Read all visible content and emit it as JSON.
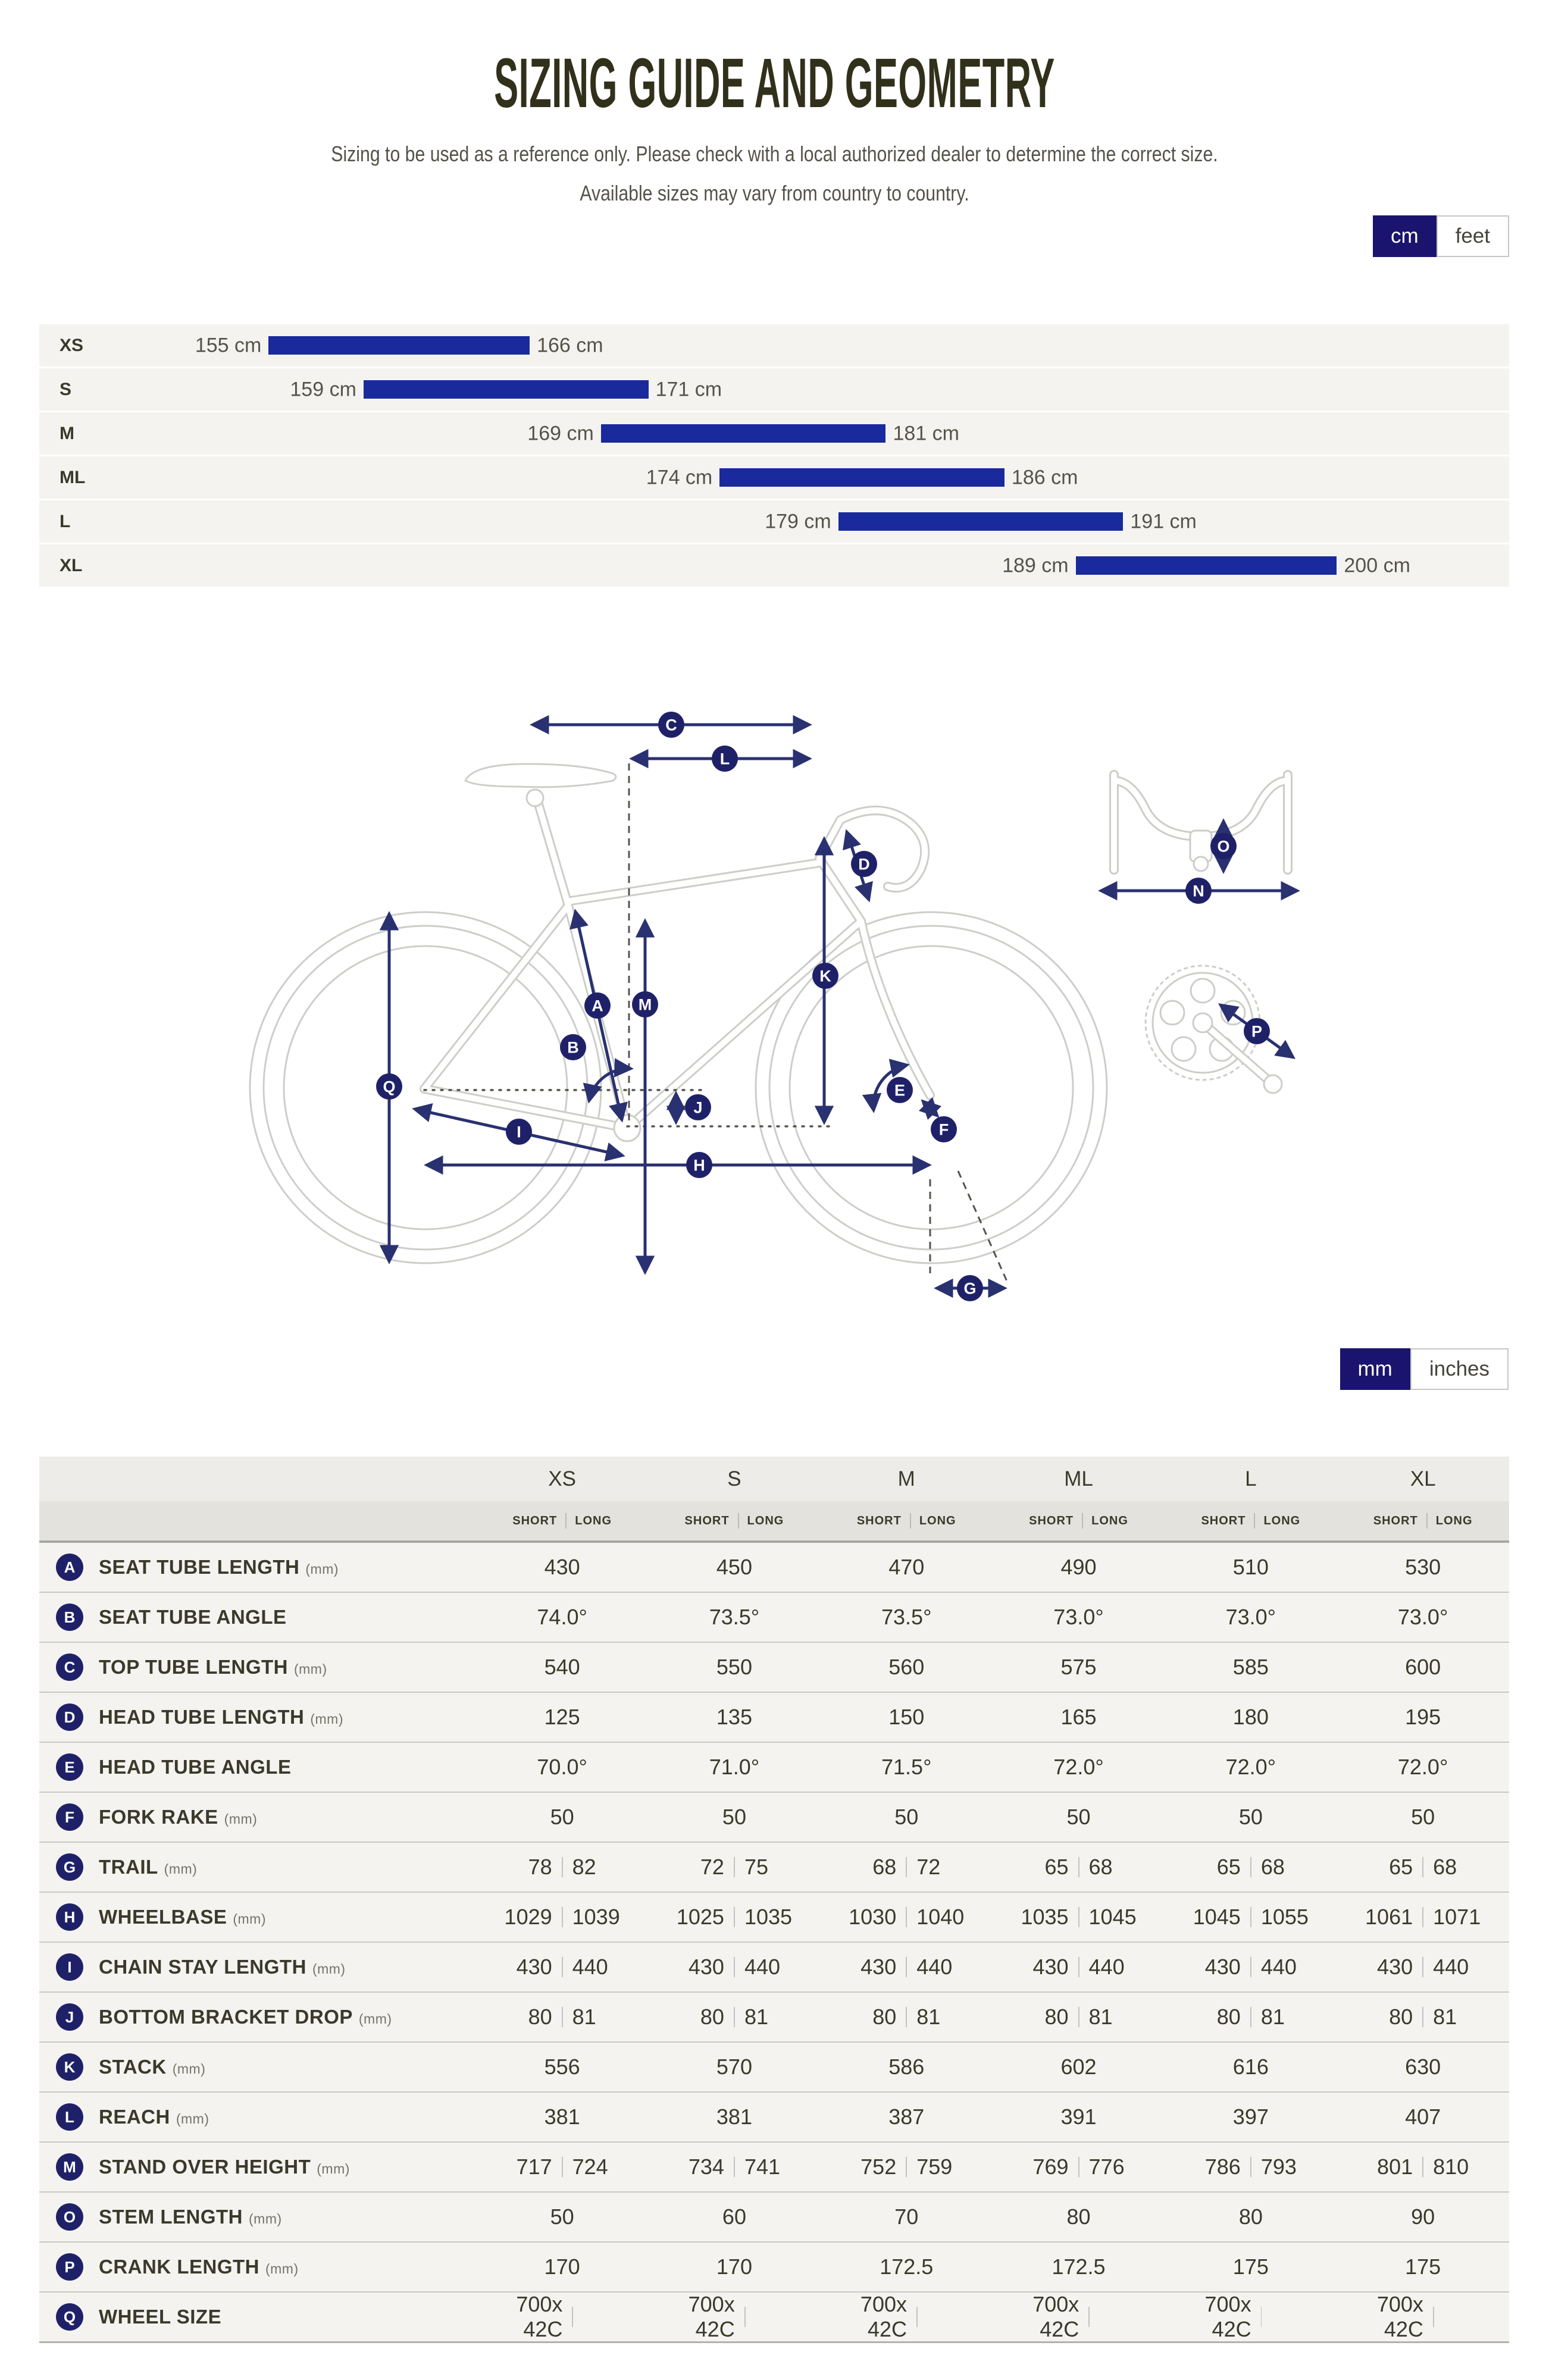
{
  "page": {
    "title": "SIZING GUIDE AND GEOMETRY",
    "subtitle1": "Sizing to be used as a reference only. Please check with a local authorized dealer to determine the correct size.",
    "subtitle2": "Available sizes may vary from country to country."
  },
  "colors": {
    "navy_toggle": "#1b146e",
    "bar_blue": "#1a2a9c",
    "arrow_navy": "#2a3170",
    "badge_navy": "#1f2168"
  },
  "height_unit_toggle": {
    "options": [
      "cm",
      "feet"
    ],
    "selected": "cm"
  },
  "geometry_unit_toggle": {
    "options": [
      "mm",
      "inches"
    ],
    "selected": "mm"
  },
  "size_chart": {
    "unit": "cm",
    "scale_min": 155,
    "scale_max": 200,
    "rows": [
      {
        "size": "XS",
        "from": 155,
        "to": 166,
        "from_label": "155 cm",
        "to_label": "166 cm"
      },
      {
        "size": "S",
        "from": 159,
        "to": 171,
        "from_label": "159 cm",
        "to_label": "171 cm"
      },
      {
        "size": "M",
        "from": 169,
        "to": 181,
        "from_label": "169 cm",
        "to_label": "181 cm"
      },
      {
        "size": "ML",
        "from": 174,
        "to": 186,
        "from_label": "174 cm",
        "to_label": "186 cm"
      },
      {
        "size": "L",
        "from": 179,
        "to": 191,
        "from_label": "179 cm",
        "to_label": "191 cm"
      },
      {
        "size": "XL",
        "from": 189,
        "to": 200,
        "from_label": "189 cm",
        "to_label": "200 cm"
      }
    ]
  },
  "diagram": {
    "labels": [
      "C",
      "L",
      "D",
      "A",
      "M",
      "B",
      "K",
      "Q",
      "E",
      "F",
      "J",
      "I",
      "H",
      "G",
      "N",
      "O",
      "P"
    ]
  },
  "geometry_table": {
    "size_headers": [
      "XS",
      "S",
      "M",
      "ML",
      "L",
      "XL"
    ],
    "sub_headers": {
      "short": "SHORT",
      "long": "LONG"
    },
    "rows": [
      {
        "letter": "A",
        "label": "SEAT TUBE LENGTH",
        "unit": "(mm)",
        "cells": [
          [
            "430"
          ],
          [
            "450"
          ],
          [
            "470"
          ],
          [
            "490"
          ],
          [
            "510"
          ],
          [
            "530"
          ]
        ]
      },
      {
        "letter": "B",
        "label": "SEAT TUBE ANGLE",
        "unit": "",
        "cells": [
          [
            "74.0°"
          ],
          [
            "73.5°"
          ],
          [
            "73.5°"
          ],
          [
            "73.0°"
          ],
          [
            "73.0°"
          ],
          [
            "73.0°"
          ]
        ]
      },
      {
        "letter": "C",
        "label": "TOP TUBE LENGTH",
        "unit": "(mm)",
        "cells": [
          [
            "540"
          ],
          [
            "550"
          ],
          [
            "560"
          ],
          [
            "575"
          ],
          [
            "585"
          ],
          [
            "600"
          ]
        ]
      },
      {
        "letter": "D",
        "label": "HEAD TUBE LENGTH",
        "unit": "(mm)",
        "cells": [
          [
            "125"
          ],
          [
            "135"
          ],
          [
            "150"
          ],
          [
            "165"
          ],
          [
            "180"
          ],
          [
            "195"
          ]
        ]
      },
      {
        "letter": "E",
        "label": "HEAD TUBE ANGLE",
        "unit": "",
        "cells": [
          [
            "70.0°"
          ],
          [
            "71.0°"
          ],
          [
            "71.5°"
          ],
          [
            "72.0°"
          ],
          [
            "72.0°"
          ],
          [
            "72.0°"
          ]
        ]
      },
      {
        "letter": "F",
        "label": "FORK RAKE",
        "unit": "(mm)",
        "cells": [
          [
            "50"
          ],
          [
            "50"
          ],
          [
            "50"
          ],
          [
            "50"
          ],
          [
            "50"
          ],
          [
            "50"
          ]
        ]
      },
      {
        "letter": "G",
        "label": "TRAIL",
        "unit": "(mm)",
        "cells": [
          [
            "78",
            "82"
          ],
          [
            "72",
            "75"
          ],
          [
            "68",
            "72"
          ],
          [
            "65",
            "68"
          ],
          [
            "65",
            "68"
          ],
          [
            "65",
            "68"
          ]
        ]
      },
      {
        "letter": "H",
        "label": "WHEELBASE",
        "unit": "(mm)",
        "cells": [
          [
            "1029",
            "1039"
          ],
          [
            "1025",
            "1035"
          ],
          [
            "1030",
            "1040"
          ],
          [
            "1035",
            "1045"
          ],
          [
            "1045",
            "1055"
          ],
          [
            "1061",
            "1071"
          ]
        ]
      },
      {
        "letter": "I",
        "label": "CHAIN STAY LENGTH",
        "unit": "(mm)",
        "cells": [
          [
            "430",
            "440"
          ],
          [
            "430",
            "440"
          ],
          [
            "430",
            "440"
          ],
          [
            "430",
            "440"
          ],
          [
            "430",
            "440"
          ],
          [
            "430",
            "440"
          ]
        ]
      },
      {
        "letter": "J",
        "label": "BOTTOM BRACKET DROP",
        "unit": "(mm)",
        "cells": [
          [
            "80",
            "81"
          ],
          [
            "80",
            "81"
          ],
          [
            "80",
            "81"
          ],
          [
            "80",
            "81"
          ],
          [
            "80",
            "81"
          ],
          [
            "80",
            "81"
          ]
        ]
      },
      {
        "letter": "K",
        "label": "STACK",
        "unit": "(mm)",
        "cells": [
          [
            "556"
          ],
          [
            "570"
          ],
          [
            "586"
          ],
          [
            "602"
          ],
          [
            "616"
          ],
          [
            "630"
          ]
        ]
      },
      {
        "letter": "L",
        "label": "REACH",
        "unit": "(mm)",
        "cells": [
          [
            "381"
          ],
          [
            "381"
          ],
          [
            "387"
          ],
          [
            "391"
          ],
          [
            "397"
          ],
          [
            "407"
          ]
        ]
      },
      {
        "letter": "M",
        "label": "STAND OVER HEIGHT",
        "unit": "(mm)",
        "cells": [
          [
            "717",
            "724"
          ],
          [
            "734",
            "741"
          ],
          [
            "752",
            "759"
          ],
          [
            "769",
            "776"
          ],
          [
            "786",
            "793"
          ],
          [
            "801",
            "810"
          ]
        ]
      },
      {
        "letter": "O",
        "label": "STEM LENGTH",
        "unit": "(mm)",
        "cells": [
          [
            "50"
          ],
          [
            "60"
          ],
          [
            "70"
          ],
          [
            "80"
          ],
          [
            "80"
          ],
          [
            "90"
          ]
        ]
      },
      {
        "letter": "P",
        "label": "CRANK LENGTH",
        "unit": "(mm)",
        "cells": [
          [
            "170"
          ],
          [
            "170"
          ],
          [
            "172.5"
          ],
          [
            "172.5"
          ],
          [
            "175"
          ],
          [
            "175"
          ]
        ]
      },
      {
        "letter": "Q",
        "label": "WHEEL SIZE",
        "unit": "",
        "cells": [
          [
            "700x 42C",
            ""
          ],
          [
            "700x 42C",
            ""
          ],
          [
            "700x 42C",
            ""
          ],
          [
            "700x 42C",
            ""
          ],
          [
            "700x 42C",
            ""
          ],
          [
            "700x 42C",
            ""
          ]
        ]
      }
    ]
  }
}
